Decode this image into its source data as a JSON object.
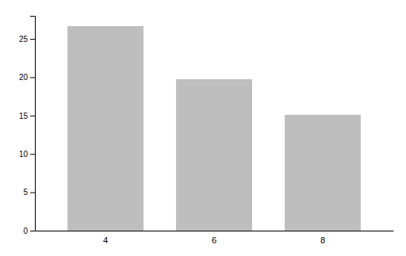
{
  "chart_data": {
    "type": "bar",
    "categories": [
      "4",
      "6",
      "8"
    ],
    "values": [
      26.664,
      19.7425,
      15.1
    ],
    "color": "#bebebe",
    "ylim": [
      0,
      28
    ],
    "yticks": [
      0,
      5,
      10,
      15,
      20,
      25
    ],
    "grid": false
  }
}
